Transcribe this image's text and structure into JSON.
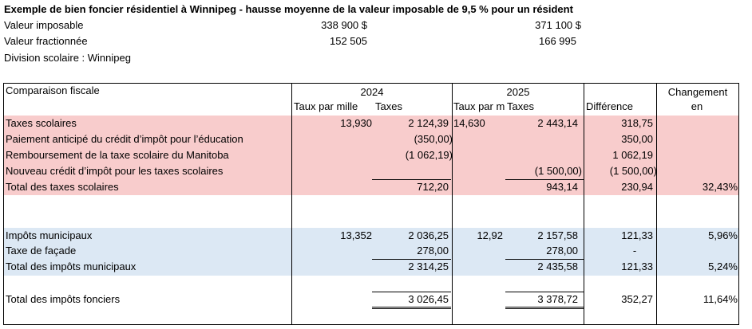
{
  "header": {
    "title": "Exemple de bien foncier résidentiel à Winnipeg - hausse moyenne de la valeur imposable de 9,5 % pour un résident",
    "rows": [
      {
        "label": "Valeur imposable",
        "v2024": "338 900 $",
        "v2025": "371 100 $"
      },
      {
        "label": "Valeur fractionnée",
        "v2024": "152 505",
        "v2025": "166 995"
      },
      {
        "label": "Division scolaire : Winnipeg",
        "v2024": "",
        "v2025": ""
      }
    ]
  },
  "table": {
    "col_label": "Comparaison fiscale",
    "year_2024": "2024",
    "year_2025": "2025",
    "sub_rate_2024": "Taux par mille",
    "sub_taxes_2024": "Taxes",
    "sub_rate_2025": "Taux par m",
    "sub_taxes_2025": "Taxes",
    "sub_diff": "Différence",
    "change_line1": "Changement",
    "change_line2": "en",
    "rows": [
      {
        "label": "Taxes scolaires",
        "r24": "13,930",
        "t24": "2 124,39",
        "r25": "14,630",
        "t25": "2 443,14",
        "diff": "318,75",
        "chg": ""
      },
      {
        "label": "Paiement anticipé du crédit d’impôt pour l’éducation",
        "r24": "",
        "t24": "(350,00)",
        "r25": "",
        "t25": "",
        "diff": "350,00",
        "chg": ""
      },
      {
        "label": "Remboursement de la taxe scolaire du Manitoba",
        "r24": "",
        "t24": "(1 062,19)",
        "r25": "",
        "t25": "",
        "diff": "1 062,19",
        "chg": ""
      },
      {
        "label": "Nouveau crédit d’impôt pour les taxes scolaires",
        "r24": "",
        "t24": "",
        "r25": "",
        "t25": "(1 500,00)",
        "diff": "(1 500,00)",
        "chg": ""
      },
      {
        "label": "Total des taxes scolaires",
        "r24": "",
        "t24": "712,20",
        "r25": "",
        "t25": "943,14",
        "diff": "230,94",
        "chg": "32,43%"
      },
      {
        "label": "Impôts municipaux",
        "r24": "13,352",
        "t24": "2 036,25",
        "r25": "12,92",
        "t25": "2 157,58",
        "diff": "121,33",
        "chg": "5,96%"
      },
      {
        "label": "Taxe de façade",
        "r24": "",
        "t24": "278,00",
        "r25": "",
        "t25": "278,00",
        "diff": "-",
        "chg": ""
      },
      {
        "label": "Total des impôts municipaux",
        "r24": "",
        "t24": "2 314,25",
        "r25": "",
        "t25": "2 435,58",
        "diff": "121,33",
        "chg": "5,24%"
      },
      {
        "label": "Total des impôts fonciers",
        "r24": "",
        "t24": "3 026,45",
        "r25": "",
        "t25": "3 378,72",
        "diff": "352,27",
        "chg": "11,64%"
      }
    ]
  },
  "colors": {
    "school_band": "#f8cccc",
    "municipal_band": "#dce8f4"
  }
}
